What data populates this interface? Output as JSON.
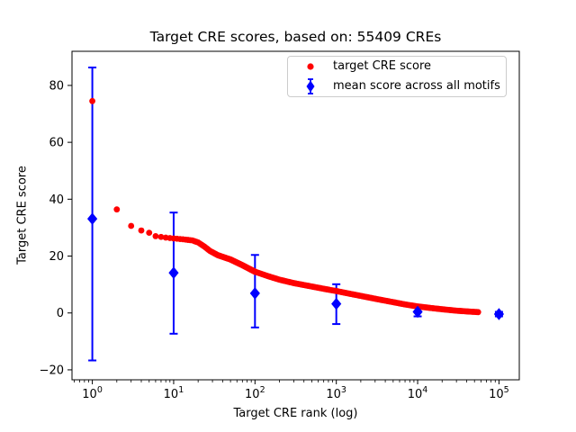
{
  "chart_data": {
    "type": "scatter",
    "title": "Target CRE scores, based on: 55409 CREs",
    "xlabel": "Target CRE rank (log)",
    "ylabel": "Target CRE score",
    "x_scale": "log",
    "grid": false,
    "background": "#ffffff",
    "spine_color": "#000000",
    "xlim_log10": [
      -0.25,
      5.25
    ],
    "ylim": [
      -23.5,
      92
    ],
    "x_tick_base": "10",
    "x_tick_exponents": [
      0,
      1,
      2,
      3,
      4,
      5
    ],
    "y_ticks": [
      {
        "value": -20,
        "label": "−20"
      },
      {
        "value": 0,
        "label": "0"
      },
      {
        "value": 20,
        "label": "20"
      },
      {
        "value": 40,
        "label": "40"
      },
      {
        "value": 60,
        "label": "60"
      },
      {
        "value": 80,
        "label": "80"
      }
    ],
    "legend": {
      "position": "upper center-right",
      "border_color": "#cccccc"
    },
    "series": [
      {
        "name": "target CRE score",
        "marker": "circle",
        "color": "#ff0000",
        "n_points": 55409,
        "anchors": [
          [
            1,
            74.5
          ],
          [
            2,
            36.4
          ],
          [
            3,
            30.6
          ],
          [
            4,
            29.0
          ],
          [
            5,
            28.2
          ],
          [
            6,
            27.0
          ],
          [
            8,
            26.5
          ],
          [
            10,
            26.2
          ],
          [
            13,
            25.9
          ],
          [
            17,
            25.5
          ],
          [
            20,
            24.8
          ],
          [
            24,
            23.3
          ],
          [
            28,
            21.8
          ],
          [
            35,
            20.3
          ],
          [
            50,
            18.8
          ],
          [
            70,
            16.8
          ],
          [
            100,
            14.5
          ],
          [
            150,
            12.8
          ],
          [
            200,
            11.7
          ],
          [
            300,
            10.5
          ],
          [
            500,
            9.3
          ],
          [
            700,
            8.5
          ],
          [
            1000,
            7.7
          ],
          [
            1500,
            6.7
          ],
          [
            2000,
            6.0
          ],
          [
            3000,
            5.0
          ],
          [
            5000,
            3.8
          ],
          [
            7000,
            3.0
          ],
          [
            10000,
            2.3
          ],
          [
            15000,
            1.7
          ],
          [
            20000,
            1.3
          ],
          [
            30000,
            0.8
          ],
          [
            45000,
            0.45
          ],
          [
            55409,
            0.3
          ]
        ]
      },
      {
        "name": "mean score across all motifs",
        "marker": "diamond",
        "color": "#0000ff",
        "points": [
          {
            "x": 1,
            "y": 33.1,
            "lo": -16.7,
            "hi": 86.3
          },
          {
            "x": 10,
            "y": 14.1,
            "lo": -7.3,
            "hi": 35.3
          },
          {
            "x": 100,
            "y": 6.9,
            "lo": -5.1,
            "hi": 20.4
          },
          {
            "x": 1000,
            "y": 3.2,
            "lo": -3.9,
            "hi": 10.1
          },
          {
            "x": 10000,
            "y": 0.4,
            "lo": -1.2,
            "hi": 1.9
          },
          {
            "x": 100000,
            "y": -0.4,
            "lo": -1.2,
            "hi": 0.4
          }
        ]
      }
    ]
  }
}
